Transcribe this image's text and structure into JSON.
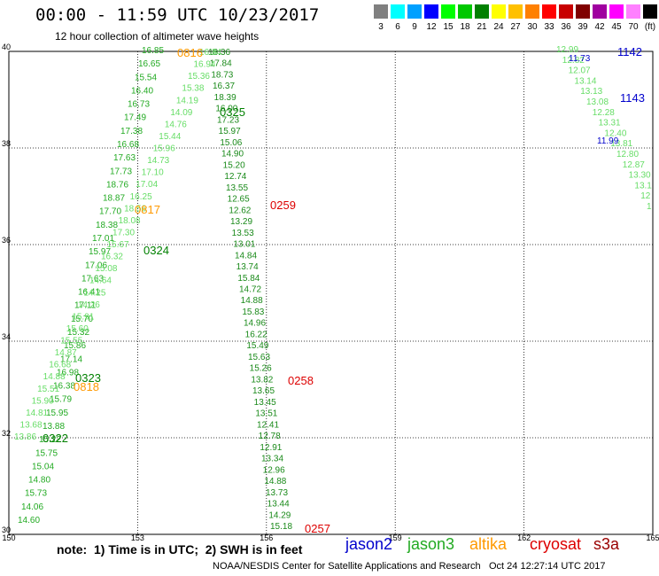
{
  "header": {
    "title": "00:00 - 11:59 UTC 10/23/2017",
    "subtitle": "12 hour collection of altimeter wave heights"
  },
  "color_scale": {
    "labels": [
      "3",
      "6",
      "9",
      "12",
      "15",
      "18",
      "21",
      "24",
      "27",
      "30",
      "33",
      "36",
      "39",
      "42",
      "45",
      "70",
      "(ft)"
    ],
    "colors": [
      "#808080",
      "#00ffff",
      "#00a0ff",
      "#0000ff",
      "#00ff00",
      "#00c800",
      "#008000",
      "#ffff00",
      "#ffc000",
      "#ff8000",
      "#ff0000",
      "#c80000",
      "#800000",
      "#a000a0",
      "#ff00ff",
      "#ff80ff",
      "#000000"
    ]
  },
  "axes": {
    "x_ticks": [
      "150",
      "153",
      "156",
      "159",
      "162",
      "165"
    ],
    "y_ticks": [
      "40",
      "38",
      "36",
      "34",
      "32",
      "30"
    ]
  },
  "tracks": [
    {
      "id": "t1",
      "color": "#22aa22",
      "values": [
        "16.85",
        "16.65",
        "15.54",
        "16.40",
        "16.73",
        "17.49",
        "17.38",
        "16.68",
        "17.63",
        "17.73",
        "18.76",
        "18.87",
        "17.70",
        "18.38",
        "17.01",
        "15.97",
        "17.06",
        "17.63",
        "16.41",
        "17.11",
        "15.70",
        "15.32",
        "15.86",
        "17.14",
        "16.98",
        "16.38",
        "15.79",
        "15.95",
        "13.88",
        "15.22",
        "15.75",
        "15.04",
        "14.80",
        "15.73",
        "14.06",
        "14.60"
      ]
    },
    {
      "id": "t2",
      "color": "#1a8a1a",
      "values": [
        "18.36",
        "17.84",
        "18.73",
        "16.37",
        "18.39",
        "16.00",
        "17.23",
        "15.97",
        "15.06",
        "14.90",
        "15.20",
        "12.74",
        "13.55",
        "12.65",
        "12.62",
        "13.29",
        "13.53",
        "13.01",
        "14.84",
        "13.74",
        "15.84",
        "14.72",
        "14.88",
        "15.83",
        "14.96",
        "16.22",
        "15.49",
        "15.63",
        "15.26",
        "13.82",
        "13.65",
        "13.45",
        "13.51",
        "12.41",
        "12.78",
        "12.91",
        "13.34",
        "12.96",
        "14.88",
        "13.73",
        "13.44",
        "14.29",
        "15.18"
      ]
    },
    {
      "id": "t3",
      "color": "#66dd66",
      "values": [
        "16.84",
        "16.94",
        "15.36",
        "15.38",
        "14.19",
        "14.09",
        "14.76",
        "15.44",
        "15.96",
        "14.73",
        "17.10",
        "17.04",
        "16.25",
        "18.56",
        "18.08",
        "17.30",
        "15.67",
        "16.32",
        "15.08",
        "14.64",
        "14.25",
        "14.26",
        "15.91",
        "15.60",
        "15.55",
        "14.87",
        "16.68",
        "14.88",
        "15.51",
        "15.90",
        "14.81",
        "13.68",
        "13.86"
      ]
    },
    {
      "id": "t4",
      "color": "#66dd66",
      "values": [
        "12.99",
        "12.82",
        "12.07",
        "13.14",
        "13.13",
        "13.08",
        "12.28",
        "13.31",
        "12.40",
        "13.81",
        "12.80",
        "12.87",
        "13.30",
        "13.1",
        "12",
        "1"
      ]
    },
    {
      "id": "t5",
      "color": "#0000cc",
      "values": [
        "11.73",
        "11.99"
      ]
    }
  ],
  "time_labels": [
    {
      "text": "0816",
      "color": "#ff9900"
    },
    {
      "text": "0325",
      "color": "#008000"
    },
    {
      "text": "0817",
      "color": "#ff9900"
    },
    {
      "text": "0324",
      "color": "#008000"
    },
    {
      "text": "0259",
      "color": "#dd0000"
    },
    {
      "text": "0323",
      "color": "#008000"
    },
    {
      "text": "0818",
      "color": "#ff9900"
    },
    {
      "text": "0258",
      "color": "#dd0000"
    },
    {
      "text": "0322",
      "color": "#008000"
    },
    {
      "text": "0257",
      "color": "#dd0000"
    },
    {
      "text": "1142",
      "color": "#0000cc"
    },
    {
      "text": "1143",
      "color": "#0000cc"
    }
  ],
  "note": "note:  1) Time is in UTC;  2) SWH is in feet",
  "legend": [
    {
      "label": "jason2",
      "color": "#0000cc"
    },
    {
      "label": "jason3",
      "color": "#22aa22"
    },
    {
      "label": "altika",
      "color": "#ff9900"
    },
    {
      "label": "cryosat",
      "color": "#dd0000"
    },
    {
      "label": "s3a",
      "color": "#990000"
    }
  ],
  "footer": {
    "credit": "NOAA/NESDIS Center for Satellite Applications and Research",
    "timestamp": "Oct 24 12:27:14 UTC 2017"
  }
}
